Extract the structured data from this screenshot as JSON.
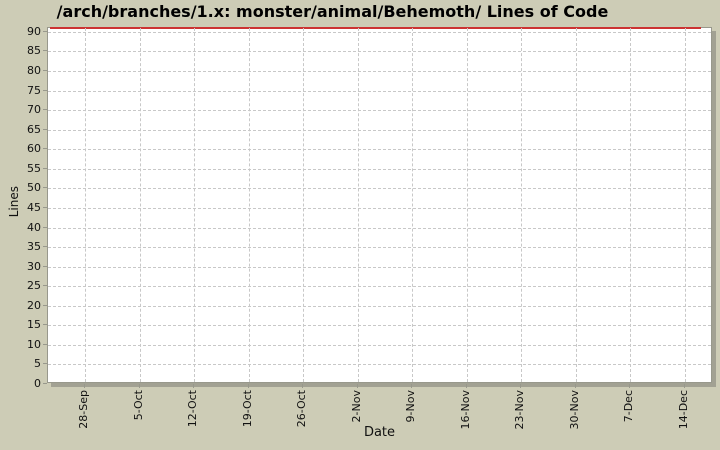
{
  "chart_data": {
    "type": "line",
    "title": "/arch/branches/1.x: monster/animal/Behemoth/ Lines of Code",
    "xlabel": "Date",
    "ylabel": "Lines",
    "x_ticks": [
      "28-Sep",
      "5-Oct",
      "12-Oct",
      "19-Oct",
      "26-Oct",
      "2-Nov",
      "9-Nov",
      "16-Nov",
      "23-Nov",
      "30-Nov",
      "7-Dec",
      "14-Dec"
    ],
    "y_ticks": [
      90,
      85,
      80,
      75,
      70,
      65,
      60,
      55,
      50,
      45,
      40,
      35,
      30,
      25,
      20,
      15,
      10,
      5,
      0
    ],
    "ylim": [
      0,
      91
    ],
    "grid": "dashed-both-axes",
    "legend": "none",
    "series": [
      {
        "name": "lines-of-code",
        "color": "#cc3333",
        "x": [
          "28-Sep",
          "5-Oct",
          "12-Oct",
          "19-Oct",
          "26-Oct",
          "2-Nov",
          "9-Nov",
          "16-Nov",
          "23-Nov",
          "30-Nov",
          "7-Dec",
          "14-Dec"
        ],
        "values": [
          91,
          91,
          91,
          91,
          91,
          91,
          91,
          91,
          91,
          91,
          91,
          91
        ],
        "note": "constant horizontal line at very top of plot area, spanning slightly past both first and last ticks"
      }
    ]
  },
  "colors": {
    "background": "#cdccb6",
    "plot_background": "#ffffff",
    "gridline": "#c8c8c8",
    "axis": "#98988c",
    "shadow": "#a2a193",
    "series_line": "#cc3333",
    "text": "#111111"
  }
}
